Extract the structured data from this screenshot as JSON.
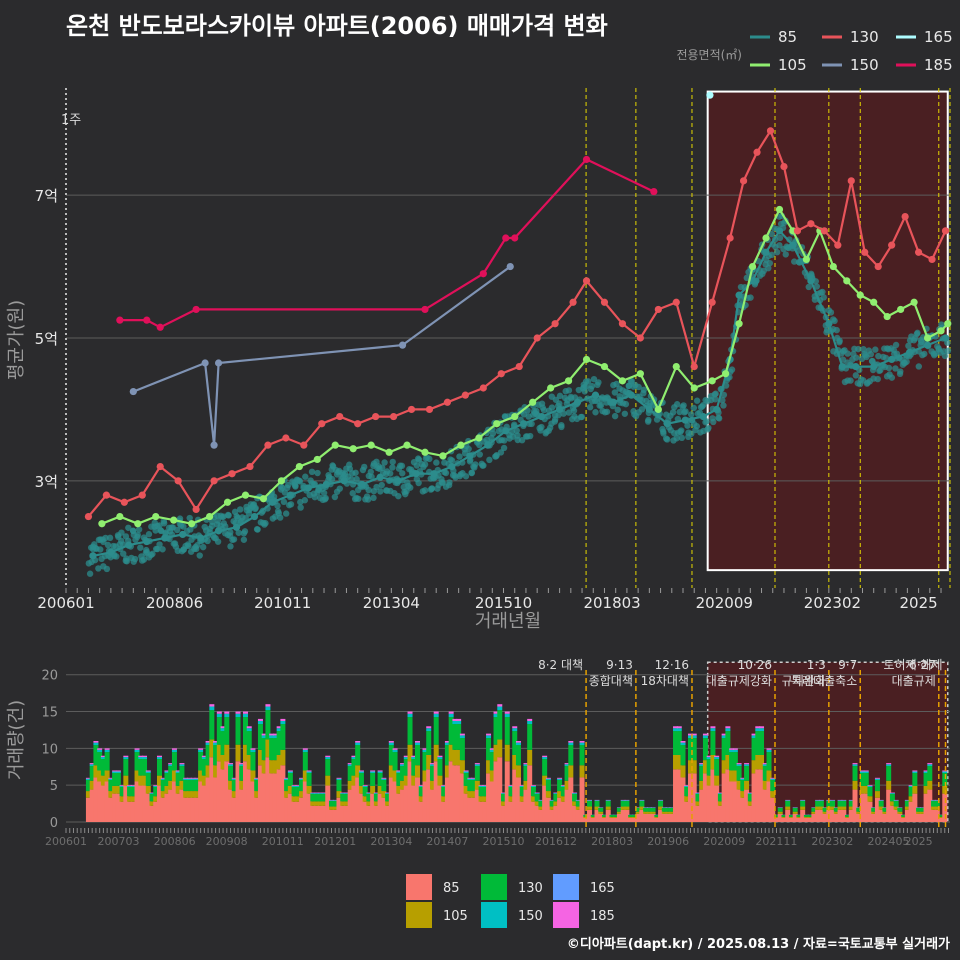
{
  "title": "온천 반도보라스카이뷰 아파트(2006) 매매가격 변화",
  "footer": "©디아파트(dapt.kr) / 2025.08.13 / 자료=국토교통부 실거래가",
  "colors": {
    "background": "#2b2b2d",
    "grid": "#5c5c5c",
    "highlight_fill": "#4a1f22",
    "highlight_border": "#ffffff",
    "policy_line": "#e6d800",
    "policy_line_bottom": "#e6a000"
  },
  "chart_data": [
    {
      "type": "line",
      "ylabel": "평균가(원)",
      "xlabel": "거래년월",
      "yticks": [
        {
          "value": 3,
          "label": "3억"
        },
        {
          "value": 5,
          "label": "5억"
        },
        {
          "value": 7,
          "label": "7억"
        }
      ],
      "xticks": [
        "200601",
        "200806",
        "201011",
        "201304",
        "201510",
        "201803",
        "202009",
        "202302",
        "2025"
      ],
      "ylim": [
        1.5,
        8.5
      ],
      "xlim": [
        2006.0,
        2025.7
      ],
      "grid": true,
      "legend_title": "전용면적(㎡)",
      "legend_position": "top-right",
      "marker_label": "1주",
      "highlight": {
        "from": 2020.3,
        "to": 2025.65
      },
      "policy_lines": [
        2017.59,
        2018.7,
        2019.95,
        2021.8,
        2023.0,
        2023.7,
        2025.45,
        2025.7
      ],
      "series": [
        {
          "name": "85",
          "color": "#2c8c8c",
          "values": [
            [
              2006.6,
              1.95
            ],
            [
              2007.0,
              2.0
            ],
            [
              2007.4,
              2.1
            ],
            [
              2007.8,
              2.15
            ],
            [
              2008.2,
              2.2
            ],
            [
              2008.6,
              2.25
            ],
            [
              2009.0,
              2.2
            ],
            [
              2009.4,
              2.3
            ],
            [
              2009.8,
              2.35
            ],
            [
              2010.2,
              2.5
            ],
            [
              2010.6,
              2.7
            ],
            [
              2011.0,
              2.8
            ],
            [
              2011.4,
              2.9
            ],
            [
              2011.8,
              2.95
            ],
            [
              2012.2,
              3.0
            ],
            [
              2012.6,
              2.95
            ],
            [
              2013.0,
              3.05
            ],
            [
              2013.4,
              3.0
            ],
            [
              2013.8,
              3.1
            ],
            [
              2014.2,
              3.1
            ],
            [
              2014.6,
              3.2
            ],
            [
              2015.0,
              3.35
            ],
            [
              2015.4,
              3.5
            ],
            [
              2015.8,
              3.7
            ],
            [
              2016.2,
              3.8
            ],
            [
              2016.6,
              3.9
            ],
            [
              2017.0,
              4.0
            ],
            [
              2017.4,
              4.1
            ],
            [
              2017.8,
              4.2
            ],
            [
              2018.2,
              4.1
            ],
            [
              2018.6,
              4.2
            ],
            [
              2019.0,
              4.0
            ],
            [
              2019.4,
              3.8
            ],
            [
              2019.8,
              3.85
            ],
            [
              2020.2,
              3.9
            ],
            [
              2020.5,
              4.0
            ],
            [
              2020.8,
              4.7
            ],
            [
              2021.0,
              5.6
            ],
            [
              2021.3,
              5.8
            ],
            [
              2021.6,
              6.2
            ],
            [
              2021.9,
              6.5
            ],
            [
              2022.2,
              6.3
            ],
            [
              2022.6,
              5.8
            ],
            [
              2023.0,
              5.2
            ],
            [
              2023.3,
              4.6
            ],
            [
              2023.6,
              4.6
            ],
            [
              2024.0,
              4.6
            ],
            [
              2024.4,
              4.7
            ],
            [
              2024.8,
              4.8
            ],
            [
              2025.2,
              4.9
            ],
            [
              2025.6,
              5.0
            ]
          ]
        },
        {
          "name": "105",
          "color": "#90ee70",
          "values": [
            [
              2006.8,
              2.4
            ],
            [
              2007.2,
              2.5
            ],
            [
              2007.6,
              2.4
            ],
            [
              2008.0,
              2.5
            ],
            [
              2008.4,
              2.45
            ],
            [
              2008.8,
              2.4
            ],
            [
              2009.2,
              2.5
            ],
            [
              2009.6,
              2.7
            ],
            [
              2010.0,
              2.8
            ],
            [
              2010.4,
              2.75
            ],
            [
              2010.8,
              3.0
            ],
            [
              2011.2,
              3.2
            ],
            [
              2011.6,
              3.3
            ],
            [
              2012.0,
              3.5
            ],
            [
              2012.4,
              3.45
            ],
            [
              2012.8,
              3.5
            ],
            [
              2013.2,
              3.4
            ],
            [
              2013.6,
              3.5
            ],
            [
              2014.0,
              3.4
            ],
            [
              2014.4,
              3.35
            ],
            [
              2014.8,
              3.5
            ],
            [
              2015.2,
              3.6
            ],
            [
              2015.6,
              3.8
            ],
            [
              2016.0,
              3.9
            ],
            [
              2016.4,
              4.1
            ],
            [
              2016.8,
              4.3
            ],
            [
              2017.2,
              4.4
            ],
            [
              2017.6,
              4.7
            ],
            [
              2018.0,
              4.6
            ],
            [
              2018.4,
              4.4
            ],
            [
              2018.8,
              4.5
            ],
            [
              2019.2,
              4.0
            ],
            [
              2019.6,
              4.6
            ],
            [
              2020.0,
              4.3
            ],
            [
              2020.4,
              4.4
            ],
            [
              2020.7,
              4.5
            ],
            [
              2021.0,
              5.2
            ],
            [
              2021.3,
              6.0
            ],
            [
              2021.6,
              6.4
            ],
            [
              2021.9,
              6.8
            ],
            [
              2022.2,
              6.5
            ],
            [
              2022.5,
              6.1
            ],
            [
              2022.8,
              6.5
            ],
            [
              2023.1,
              6.0
            ],
            [
              2023.4,
              5.8
            ],
            [
              2023.7,
              5.6
            ],
            [
              2024.0,
              5.5
            ],
            [
              2024.3,
              5.3
            ],
            [
              2024.6,
              5.4
            ],
            [
              2024.9,
              5.5
            ],
            [
              2025.2,
              5.0
            ],
            [
              2025.5,
              5.1
            ],
            [
              2025.65,
              5.2
            ]
          ]
        },
        {
          "name": "130",
          "color": "#e8545a",
          "values": [
            [
              2006.5,
              2.5
            ],
            [
              2006.9,
              2.8
            ],
            [
              2007.3,
              2.7
            ],
            [
              2007.7,
              2.8
            ],
            [
              2008.1,
              3.2
            ],
            [
              2008.5,
              3.0
            ],
            [
              2008.9,
              2.6
            ],
            [
              2009.3,
              3.0
            ],
            [
              2009.7,
              3.1
            ],
            [
              2010.1,
              3.2
            ],
            [
              2010.5,
              3.5
            ],
            [
              2010.9,
              3.6
            ],
            [
              2011.3,
              3.5
            ],
            [
              2011.7,
              3.8
            ],
            [
              2012.1,
              3.9
            ],
            [
              2012.5,
              3.8
            ],
            [
              2012.9,
              3.9
            ],
            [
              2013.3,
              3.9
            ],
            [
              2013.7,
              4.0
            ],
            [
              2014.1,
              4.0
            ],
            [
              2014.5,
              4.1
            ],
            [
              2014.9,
              4.2
            ],
            [
              2015.3,
              4.3
            ],
            [
              2015.7,
              4.5
            ],
            [
              2016.1,
              4.6
            ],
            [
              2016.5,
              5.0
            ],
            [
              2016.9,
              5.2
            ],
            [
              2017.3,
              5.5
            ],
            [
              2017.6,
              5.8
            ],
            [
              2018.0,
              5.5
            ],
            [
              2018.4,
              5.2
            ],
            [
              2018.8,
              5.0
            ],
            [
              2019.2,
              5.4
            ],
            [
              2019.6,
              5.5
            ],
            [
              2020.0,
              4.6
            ],
            [
              2020.4,
              5.5
            ],
            [
              2020.8,
              6.4
            ],
            [
              2021.1,
              7.2
            ],
            [
              2021.4,
              7.6
            ],
            [
              2021.7,
              7.9
            ],
            [
              2022.0,
              7.4
            ],
            [
              2022.3,
              6.5
            ],
            [
              2022.6,
              6.6
            ],
            [
              2022.9,
              6.5
            ],
            [
              2023.2,
              6.3
            ],
            [
              2023.5,
              7.2
            ],
            [
              2023.8,
              6.2
            ],
            [
              2024.1,
              6.0
            ],
            [
              2024.4,
              6.3
            ],
            [
              2024.7,
              6.7
            ],
            [
              2025.0,
              6.2
            ],
            [
              2025.3,
              6.1
            ],
            [
              2025.6,
              6.5
            ]
          ]
        },
        {
          "name": "150",
          "color": "#7f93b4",
          "values": [
            [
              2007.5,
              4.25
            ],
            [
              2009.1,
              4.65
            ],
            [
              2009.3,
              3.5
            ],
            [
              2009.4,
              4.65
            ],
            [
              2013.5,
              4.9
            ],
            [
              2015.9,
              6.0
            ]
          ]
        },
        {
          "name": "165",
          "color": "#aefcff",
          "values": [
            [
              2020.35,
              8.4
            ]
          ]
        },
        {
          "name": "185",
          "color": "#e0105a",
          "values": [
            [
              2007.2,
              5.25
            ],
            [
              2007.8,
              5.25
            ],
            [
              2008.1,
              5.15
            ],
            [
              2008.9,
              5.4
            ],
            [
              2014.0,
              5.4
            ],
            [
              2015.3,
              5.9
            ],
            [
              2015.8,
              6.4
            ],
            [
              2016.0,
              6.4
            ],
            [
              2017.6,
              7.5
            ],
            [
              2019.1,
              7.05
            ]
          ]
        }
      ]
    },
    {
      "type": "bar",
      "ylabel": "거래량(건)",
      "yticks": [
        0,
        5,
        10,
        15,
        20
      ],
      "ylim": [
        0,
        22
      ],
      "xticks": [
        "200601",
        "200703",
        "200806",
        "200908",
        "201011",
        "201201",
        "201304",
        "201407",
        "201510",
        "201612",
        "201803",
        "201906",
        "202009",
        "202111",
        "202302",
        "202405",
        "2025"
      ],
      "legend_position": "bottom",
      "highlight": {
        "from": 2020.3,
        "to": 2025.65
      },
      "policy_annotations": [
        {
          "x": 2017.59,
          "lines": [
            "8·2 대책"
          ]
        },
        {
          "x": 2018.7,
          "lines": [
            "9·13",
            "종합대책"
          ]
        },
        {
          "x": 2019.95,
          "lines": [
            "12·16",
            "18차대책"
          ]
        },
        {
          "x": 2021.8,
          "lines": [
            "10·26",
            "대출규제강화"
          ]
        },
        {
          "x": 2023.0,
          "lines": [
            "1·3",
            "규제완화"
          ]
        },
        {
          "x": 2023.7,
          "lines": [
            "9·7",
            "특례대출축소"
          ]
        },
        {
          "x": 2025.45,
          "lines": [
            "6·27",
            "대출규제"
          ]
        },
        {
          "x": 2025.6,
          "lines": [
            "토허제 해제"
          ]
        }
      ],
      "series_names": [
        "85",
        "105",
        "130",
        "150",
        "165",
        "185"
      ],
      "series_colors": [
        "#f8766d",
        "#b79f00",
        "#00ba38",
        "#00bfc4",
        "#619cff",
        "#f564e3"
      ]
    }
  ]
}
